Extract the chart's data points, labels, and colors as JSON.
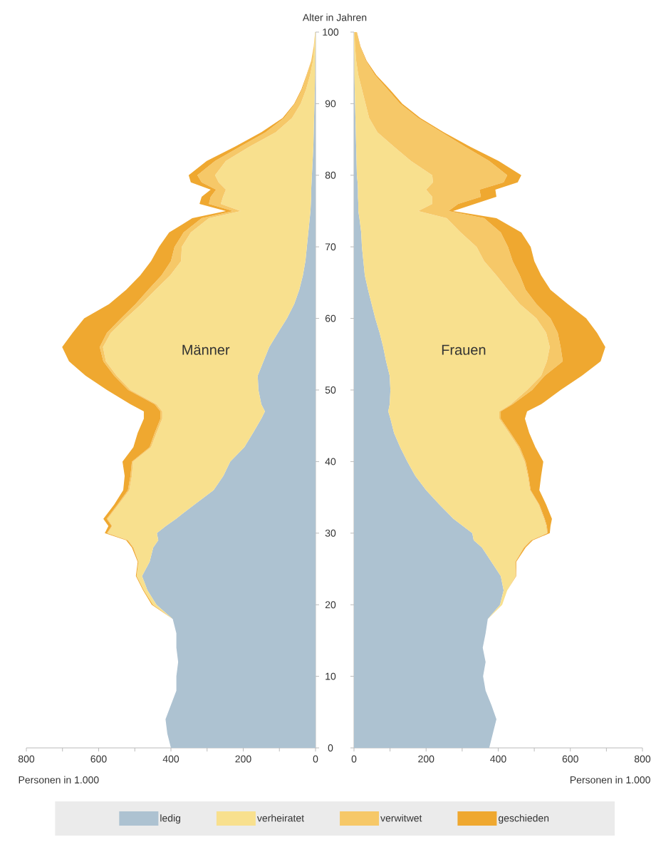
{
  "chart_data": [
    {
      "type": "area",
      "orientation": "horizontal",
      "stacked": true,
      "title": "Männer",
      "xlabel": "Personen in 1.000",
      "ylabel": "Alter in Jahren",
      "legend": "bottom",
      "x": [
        0,
        2,
        4,
        6,
        8,
        10,
        12,
        14,
        16,
        18,
        20,
        22,
        24,
        26,
        28,
        29,
        30,
        31,
        32,
        34,
        36,
        38,
        40,
        42,
        44,
        46,
        47,
        48,
        50,
        52,
        54,
        56,
        58,
        60,
        62,
        64,
        66,
        68,
        70,
        72,
        74,
        75,
        76,
        77,
        78,
        79,
        80,
        82,
        84,
        86,
        88,
        90,
        92,
        94,
        96,
        98,
        100
      ],
      "series": [
        {
          "name": "ledig",
          "color": "#adc2d1",
          "values": [
            400,
            410,
            415,
            400,
            385,
            385,
            380,
            385,
            385,
            395,
            440,
            465,
            480,
            459,
            449,
            435,
            439,
            414,
            386,
            335,
            282,
            255,
            236,
            197,
            173,
            150,
            140,
            150,
            158,
            160,
            144,
            128,
            104,
            79,
            59,
            45,
            35,
            28,
            24,
            20,
            16,
            14,
            13,
            12,
            12,
            11,
            10,
            8,
            6,
            5,
            4,
            3,
            2,
            1,
            1,
            0,
            0
          ]
        },
        {
          "name": "verheiratet",
          "color": "#f8e08e",
          "values": [
            0,
            0,
            0,
            0,
            0,
            0,
            0,
            0,
            0,
            0,
            10,
            10,
            15,
            31,
            54,
            83,
            136,
            148,
            189,
            210,
            233,
            253,
            269,
            258,
            267,
            274,
            284,
            290,
            354,
            390,
            436,
            460,
            462,
            446,
            423,
            398,
            367,
            344,
            346,
            325,
            279,
            193,
            249,
            244,
            236,
            257,
            268,
            240,
            177,
            105,
            61,
            38,
            24,
            14,
            6,
            3,
            1
          ]
        },
        {
          "name": "verwitwet",
          "color": "#f6c868",
          "values": [
            0,
            0,
            0,
            0,
            0,
            0,
            0,
            0,
            0,
            0,
            0,
            0,
            0,
            0,
            2,
            2,
            2,
            2,
            3,
            3,
            4,
            4,
            3,
            4,
            5,
            5,
            5,
            5,
            6,
            7,
            7,
            9,
            11,
            13,
            16,
            20,
            24,
            28,
            20,
            20,
            20,
            21,
            33,
            34,
            27,
            47,
            49,
            30,
            26,
            28,
            22,
            16,
            11,
            9,
            5,
            2,
            0
          ]
        },
        {
          "name": "geschieden",
          "color": "#efa830",
          "values": [
            0,
            0,
            0,
            0,
            0,
            0,
            0,
            0,
            0,
            0,
            3,
            2,
            2,
            2,
            3,
            4,
            6,
            9,
            9,
            9,
            13,
            16,
            26,
            45,
            47,
            46,
            46,
            67,
            59,
            79,
            95,
            104,
            95,
            102,
            73,
            61,
            59,
            55,
            43,
            40,
            26,
            20,
            26,
            25,
            15,
            30,
            24,
            23,
            14,
            12,
            4,
            2,
            2,
            1,
            0,
            0,
            0
          ]
        }
      ],
      "xlim": [
        800,
        0
      ],
      "xticks": [
        0,
        {
          "value": 100,
          "label": null
        },
        200,
        {
          "value": 300,
          "label": null
        },
        400,
        {
          "value": 500,
          "label": null
        },
        600,
        {
          "value": 700,
          "label": null
        },
        800
      ],
      "ylim": [
        0,
        100
      ],
      "yticks": [
        0,
        10,
        20,
        30,
        40,
        50,
        60,
        70,
        80,
        90,
        100
      ]
    },
    {
      "type": "area",
      "orientation": "horizontal",
      "stacked": true,
      "title": "Frauen",
      "xlabel": "Personen in 1.000",
      "tick_labels": "x",
      "x": [
        0,
        2,
        4,
        6,
        8,
        10,
        12,
        14,
        16,
        18,
        20,
        22,
        24,
        26,
        28,
        29,
        30,
        31,
        32,
        34,
        36,
        38,
        40,
        42,
        44,
        46,
        47,
        48,
        50,
        52,
        54,
        56,
        58,
        60,
        62,
        64,
        66,
        68,
        70,
        72,
        74,
        75,
        76,
        77,
        78,
        79,
        80,
        82,
        84,
        86,
        88,
        90,
        92,
        94,
        96,
        98,
        100
      ],
      "series": [
        {
          "color": "#adc2d1",
          "values": [
            375,
            385,
            395,
            381,
            365,
            358,
            365,
            357,
            365,
            371,
            405,
            415,
            407,
            381,
            355,
            332,
            328,
            302,
            276,
            237,
            200,
            170,
            148,
            128,
            111,
            101,
            95,
            99,
            101,
            99,
            89,
            81,
            71,
            59,
            49,
            39,
            30,
            26,
            22,
            20,
            15,
            12,
            12,
            11,
            11,
            10,
            8,
            7,
            6,
            5,
            4,
            3,
            2,
            1,
            1,
            0,
            0
          ]
        },
        {
          "color": "#f8e08e",
          "values": [
            0,
            0,
            0,
            0,
            0,
            0,
            0,
            0,
            0,
            0,
            6,
            10,
            41,
            66,
            115,
            158,
            207,
            231,
            251,
            275,
            288,
            312,
            325,
            328,
            319,
            302,
            308,
            336,
            379,
            420,
            446,
            462,
            462,
            447,
            411,
            388,
            365,
            335,
            318,
            276,
            242,
            166,
            205,
            206,
            189,
            209,
            209,
            151,
            105,
            60,
            38,
            29,
            20,
            11,
            5,
            3,
            1
          ]
        },
        {
          "color": "#f6c868",
          "values": [
            0,
            0,
            0,
            0,
            0,
            0,
            0,
            0,
            0,
            0,
            0,
            0,
            1,
            1,
            2,
            2,
            2,
            2,
            2,
            2,
            2,
            2,
            3,
            4,
            4,
            4,
            4,
            5,
            14,
            10,
            44,
            30,
            32,
            39,
            46,
            49,
            65,
            79,
            87,
            111,
            104,
            84,
            72,
            135,
            148,
            196,
            208,
            217,
            197,
            178,
            136,
            96,
            71,
            46,
            27,
            14,
            6
          ]
        },
        {
          "color": "#efa830",
          "values": [
            0,
            0,
            0,
            0,
            0,
            0,
            0,
            0,
            0,
            0,
            0,
            0,
            1,
            2,
            4,
            4,
            6,
            10,
            20,
            19,
            24,
            35,
            49,
            43,
            52,
            67,
            73,
            79,
            79,
            103,
            105,
            124,
            109,
            99,
            87,
            69,
            59,
            60,
            63,
            57,
            34,
            13,
            46,
            43,
            44,
            39,
            39,
            26,
            14,
            6,
            6,
            6,
            6,
            4,
            2,
            1,
            1
          ]
        }
      ],
      "xlim": [
        0,
        800
      ],
      "xticks": [
        0,
        {
          "value": 100,
          "label": null
        },
        200,
        {
          "value": 300,
          "label": null
        },
        400,
        {
          "value": 500,
          "label": null
        },
        600,
        {
          "value": 700,
          "label": null
        },
        800
      ],
      "ylim": [
        0,
        100
      ],
      "yticks": [
        0,
        10,
        20,
        30,
        40,
        50,
        60,
        70,
        80,
        90,
        100
      ]
    }
  ]
}
